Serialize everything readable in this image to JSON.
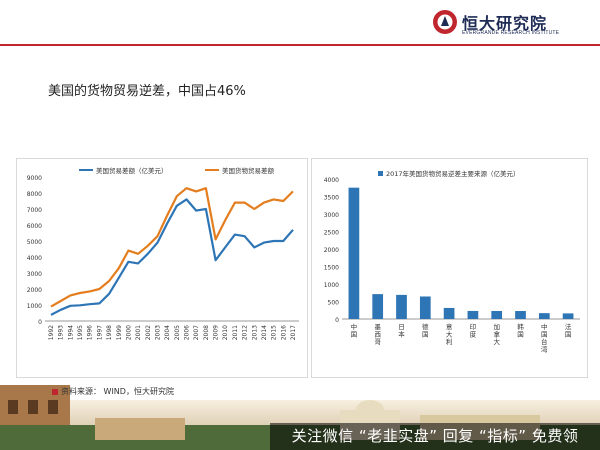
{
  "header": {
    "logo_cn": "恒大研究院",
    "logo_en": "EVERGRANDE RESEARCH INSTITUTE",
    "brand_color": "#c0262d"
  },
  "headline": "美国的货物贸易逆差，中国占46%",
  "source_note": "资料来源： WIND，恒大研究院",
  "watermark": "关注微信 “老韭实盘” 回复 “指标” 免费领",
  "chart_data": [
    {
      "type": "line",
      "x": [
        "1992",
        "1993",
        "1994",
        "1995",
        "1996",
        "1997",
        "1998",
        "1999",
        "2000",
        "2001",
        "2002",
        "2003",
        "2004",
        "2005",
        "2006",
        "2007",
        "2008",
        "2009",
        "2010",
        "2011",
        "2012",
        "2013",
        "2014",
        "2015",
        "2016",
        "2017"
      ],
      "series": [
        {
          "name": "美国贸易差额（亿美元）",
          "color": "#2e75b6",
          "values": [
            380,
            700,
            950,
            980,
            1050,
            1100,
            1700,
            2700,
            3700,
            3600,
            4200,
            4900,
            6100,
            7200,
            7600,
            6900,
            7000,
            3800,
            4600,
            5400,
            5300,
            4600,
            4900,
            5000,
            5000,
            5700
          ]
        },
        {
          "name": "美国货物贸易差额",
          "color": "#e47d1e",
          "values": [
            900,
            1250,
            1600,
            1750,
            1850,
            2000,
            2500,
            3300,
            4400,
            4200,
            4700,
            5300,
            6600,
            7800,
            8300,
            8100,
            8300,
            5100,
            6300,
            7400,
            7400,
            7000,
            7400,
            7600,
            7500,
            8100
          ]
        }
      ],
      "ylim": [
        0,
        9000
      ],
      "yticks": [
        0,
        1000,
        2000,
        3000,
        4000,
        5000,
        6000,
        7000,
        8000,
        9000
      ]
    },
    {
      "type": "bar",
      "categories": [
        "中国",
        "墨西哥",
        "日本",
        "德国",
        "意大利",
        "印度",
        "加拿大",
        "韩国",
        "中国台湾",
        "法国"
      ],
      "series": [
        {
          "name": "2017年美国货物贸易逆差主要来源（亿美元）",
          "color": "#2e75b6",
          "values": [
            3752,
            711,
            689,
            643,
            316,
            230,
            229,
            228,
            167,
            160
          ]
        }
      ],
      "ylim": [
        0,
        4000
      ],
      "yticks": [
        0,
        500,
        1000,
        1500,
        2000,
        2500,
        3000,
        3500,
        4000
      ]
    }
  ]
}
